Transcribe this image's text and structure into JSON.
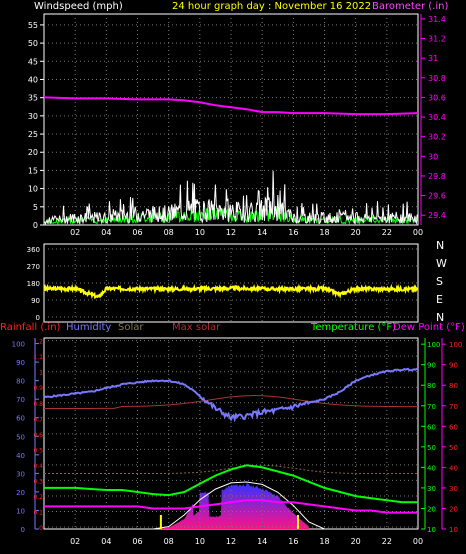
{
  "header": {
    "wind_label": "Windspeed (mph)",
    "title": "24 hour graph day : November 16 2022",
    "baro_label": "Barometer (.in)"
  },
  "legend": {
    "rainfall": "Rainfall (.in)",
    "humidity": "Humidity",
    "solar": "Solar",
    "max_solar": "Max solar",
    "temperature": "Temperature (°F)",
    "dew_point": "Dew Point (°F)"
  },
  "colors": {
    "background": "#000000",
    "grid": "#777777",
    "frame": "#ffffff",
    "wind": "#ffffff",
    "gust": "#00ff00",
    "barometer": "#ff00ff",
    "direction": "#ffff00",
    "humidity": "#7777ff",
    "rainfall": "#ff2222",
    "temperature": "#00ff00",
    "dew_point": "#ff00ff",
    "max_solar": "#ffffff",
    "solar_top": "#3333ff",
    "solar_bottom": "#ff1188",
    "solar_line": "#886644",
    "maxtemp_line": "#aa3333"
  },
  "x_ticks": [
    "02",
    "04",
    "06",
    "08",
    "10",
    "12",
    "14",
    "16",
    "18",
    "20",
    "22",
    "00"
  ],
  "wind_ticks": [
    "0",
    "5",
    "10",
    "15",
    "20",
    "25",
    "30",
    "35",
    "40",
    "45",
    "50",
    "55"
  ],
  "baro_ticks": [
    "29.4",
    "29.6",
    "29.8",
    "30",
    "30.2",
    "30.4",
    "30.6",
    "30.8",
    "31",
    "31.2",
    "31.4"
  ],
  "dir_ticks": [
    "0",
    "90",
    "180",
    "270",
    "360"
  ],
  "compass": [
    "N",
    "W",
    "S",
    "E",
    "N"
  ],
  "humidity_ticks": [
    "0",
    "10",
    "20",
    "30",
    "40",
    "50",
    "60",
    "70",
    "80",
    "90",
    "100"
  ],
  "rain_ticks": [
    "0",
    "0.1",
    "0.2",
    "0.3",
    "0.4",
    "0.5",
    "0.6",
    "0.7",
    "0.8",
    "0.9",
    "1",
    "1.1",
    "1.2"
  ],
  "temp_ticks": [
    "10",
    "20",
    "30",
    "40",
    "50",
    "60",
    "70",
    "80",
    "90",
    "100"
  ],
  "dew_ticks": [
    "10",
    "20",
    "30",
    "40",
    "50",
    "60",
    "70",
    "80",
    "90",
    "100"
  ],
  "chart_data": [
    {
      "type": "line",
      "title": "24 hour graph day : November 16 2022",
      "xlabel": "",
      "ylabel": "Windspeed (mph)",
      "ylim": [
        0,
        58
      ],
      "y2label": "Barometer (.in)",
      "y2lim": [
        29.3,
        31.45
      ],
      "x": [
        0,
        2,
        4,
        6,
        8,
        9,
        10,
        11,
        12,
        13,
        14,
        15,
        16,
        18,
        20,
        22,
        24
      ],
      "series": [
        {
          "name": "Windspeed (mph)",
          "values": [
            1,
            2,
            2,
            3,
            3,
            4,
            4,
            4,
            4,
            3,
            4,
            5,
            2,
            2,
            2,
            2,
            2
          ]
        },
        {
          "name": "Barometer (.in)",
          "axis": "right",
          "values": [
            30.6,
            30.59,
            30.59,
            30.58,
            30.58,
            30.57,
            30.55,
            30.52,
            30.5,
            30.48,
            30.45,
            30.45,
            30.44,
            30.44,
            30.43,
            30.43,
            30.44
          ]
        }
      ]
    },
    {
      "type": "scatter",
      "ylabel": "",
      "ylim": [
        0,
        360
      ],
      "x": [
        0,
        2,
        3.5,
        4,
        6,
        8,
        10,
        12,
        14,
        16,
        18,
        19,
        20,
        22,
        24
      ],
      "series": [
        {
          "name": "Wind direction",
          "values": [
            150,
            150,
            105,
            150,
            150,
            148,
            150,
            152,
            150,
            148,
            150,
            120,
            150,
            148,
            148
          ]
        }
      ]
    },
    {
      "type": "line",
      "ylabel": "Temperature (°F)",
      "ylim": [
        10,
        103
      ],
      "x": [
        0,
        1,
        2,
        3,
        4,
        5,
        6,
        7,
        8,
        9,
        10,
        11,
        12,
        13,
        14,
        15,
        16,
        17,
        18,
        19,
        20,
        21,
        22,
        23,
        24
      ],
      "series": [
        {
          "name": "Humidity",
          "axis": "humidity",
          "values": [
            71,
            72,
            73,
            74,
            76,
            78,
            79,
            80,
            80,
            78,
            72,
            65,
            60,
            61,
            63,
            64,
            66,
            68,
            70,
            74,
            80,
            83,
            85,
            86,
            86
          ]
        },
        {
          "name": "Temperature (°F)",
          "values": [
            30,
            30,
            30,
            29.5,
            29,
            29,
            28,
            27,
            26.5,
            28,
            32,
            36,
            39,
            41,
            40,
            38,
            36,
            33,
            30,
            28,
            26,
            25,
            24,
            23,
            23
          ]
        },
        {
          "name": "Dew Point (°F)",
          "values": [
            21,
            21,
            21,
            21,
            21,
            21,
            21,
            20,
            20,
            20,
            21,
            22,
            23,
            24,
            24,
            23,
            23,
            22,
            21,
            20,
            19,
            19,
            18,
            18,
            18
          ]
        },
        {
          "name": "Max solar",
          "axis": "solar",
          "values": [
            0,
            0,
            0,
            0,
            0,
            0,
            0,
            0,
            0.05,
            0.3,
            0.62,
            0.85,
            0.98,
            1,
            0.95,
            0.78,
            0.5,
            0.15,
            0,
            0,
            0,
            0,
            0,
            0,
            0
          ]
        },
        {
          "name": "Solar",
          "axis": "solar",
          "values": [
            0,
            0,
            0,
            0,
            0,
            0,
            0,
            0,
            0.03,
            0.22,
            0.82,
            0.78,
            0.96,
            0.98,
            0.9,
            0.72,
            0.35,
            0.05,
            0,
            0,
            0,
            0,
            0,
            0,
            0
          ]
        }
      ]
    }
  ]
}
